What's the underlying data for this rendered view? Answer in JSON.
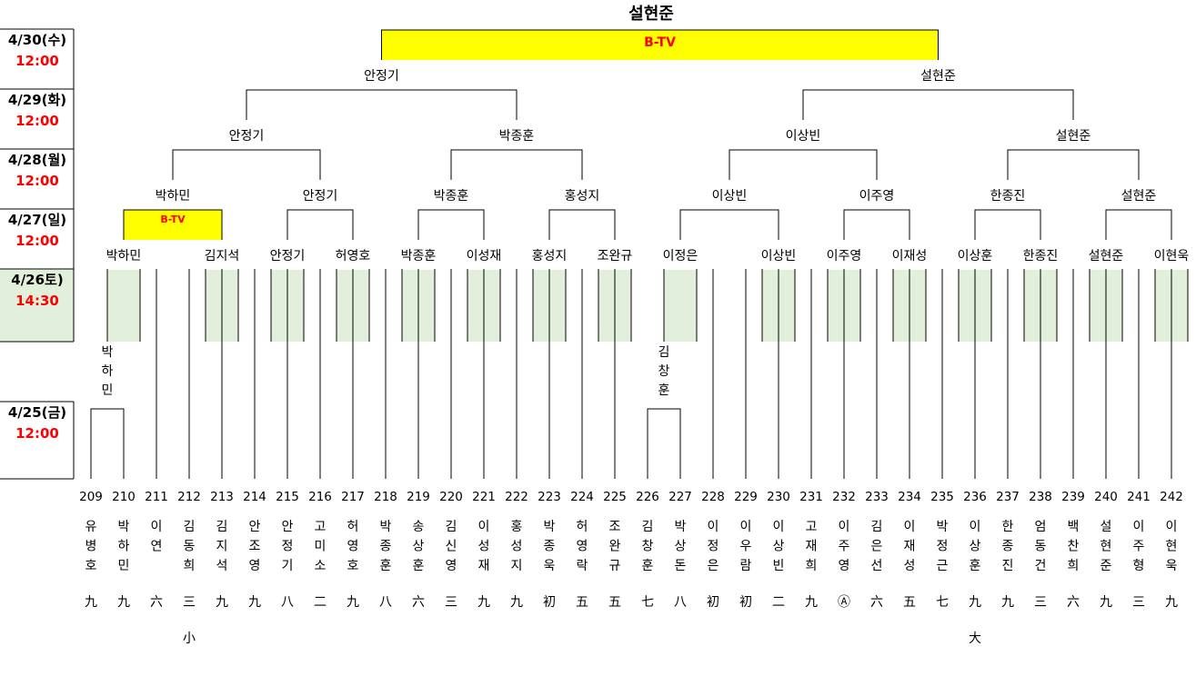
{
  "title": "설현준",
  "highlight_color": "#ffff00",
  "round1_fill": "#e2efda",
  "time_color": "#ff0000",
  "schedule": [
    {
      "date": "4/30(수)",
      "time": "12:00"
    },
    {
      "date": "4/29(화)",
      "time": "12:00"
    },
    {
      "date": "4/28(월)",
      "time": "12:00"
    },
    {
      "date": "4/27(일)",
      "time": "12:00"
    },
    {
      "date": "4/26토)",
      "time": "14:30"
    },
    {
      "date": "4/25(금)",
      "time": "12:00"
    }
  ],
  "broadcast_final": "B-TV",
  "broadcast_r16": "B-TV",
  "players": [
    {
      "seed": "209",
      "name": "유병호",
      "rank": "九"
    },
    {
      "seed": "210",
      "name": "박하민",
      "rank": "九"
    },
    {
      "seed": "211",
      "name": "이연",
      "rank": "六"
    },
    {
      "seed": "212",
      "name": "김동희",
      "rank": "三"
    },
    {
      "seed": "213",
      "name": "김지석",
      "rank": "九"
    },
    {
      "seed": "214",
      "name": "안조영",
      "rank": "九"
    },
    {
      "seed": "215",
      "name": "안정기",
      "rank": "八"
    },
    {
      "seed": "216",
      "name": "고미소",
      "rank": "二"
    },
    {
      "seed": "217",
      "name": "허영호",
      "rank": "九"
    },
    {
      "seed": "218",
      "name": "박종훈",
      "rank": "八"
    },
    {
      "seed": "219",
      "name": "송상훈",
      "rank": "六"
    },
    {
      "seed": "220",
      "name": "김신영",
      "rank": "三"
    },
    {
      "seed": "221",
      "name": "이성재",
      "rank": "九"
    },
    {
      "seed": "222",
      "name": "홍성지",
      "rank": "九"
    },
    {
      "seed": "223",
      "name": "박종욱",
      "rank": "初"
    },
    {
      "seed": "224",
      "name": "허영락",
      "rank": "五"
    },
    {
      "seed": "225",
      "name": "조완규",
      "rank": "五"
    },
    {
      "seed": "226",
      "name": "김창훈",
      "rank": "七"
    },
    {
      "seed": "227",
      "name": "박상돈",
      "rank": "八"
    },
    {
      "seed": "228",
      "name": "이정은",
      "rank": "初"
    },
    {
      "seed": "229",
      "name": "이우람",
      "rank": "初"
    },
    {
      "seed": "230",
      "name": "이상빈",
      "rank": "二"
    },
    {
      "seed": "231",
      "name": "고재희",
      "rank": "九"
    },
    {
      "seed": "232",
      "name": "이주영",
      "rank": "Ⓐ"
    },
    {
      "seed": "233",
      "name": "김은선",
      "rank": "六"
    },
    {
      "seed": "234",
      "name": "이재성",
      "rank": "五"
    },
    {
      "seed": "235",
      "name": "박정근",
      "rank": "七"
    },
    {
      "seed": "236",
      "name": "이상훈",
      "rank": "九"
    },
    {
      "seed": "237",
      "name": "한종진",
      "rank": "九"
    },
    {
      "seed": "238",
      "name": "엄동건",
      "rank": "三"
    },
    {
      "seed": "239",
      "name": "백찬희",
      "rank": "六"
    },
    {
      "seed": "240",
      "name": "설현준",
      "rank": "九"
    },
    {
      "seed": "241",
      "name": "이주형",
      "rank": "三"
    },
    {
      "seed": "242",
      "name": "이현욱",
      "rank": "九"
    }
  ],
  "notes": [
    {
      "player_index": 3,
      "text": "小"
    },
    {
      "player_index": 27,
      "text": "大"
    }
  ],
  "prelim_winners": [
    "박하민",
    "김창훈"
  ],
  "r32_winners": [
    "박하민",
    "김지석",
    "안정기",
    "허영호",
    "박종훈",
    "이성재",
    "홍성지",
    "조완규",
    "이정은",
    "이상빈",
    "이주영",
    "이재성",
    "이상훈",
    "한종진",
    "설현준",
    "이현욱"
  ],
  "r16_winners": [
    "박하민",
    "안정기",
    "박종훈",
    "홍성지",
    "이상빈",
    "이주영",
    "한종진",
    "설현준"
  ],
  "qf_winners": [
    "안정기",
    "박종훈",
    "이상빈",
    "설현준"
  ],
  "sf_winners": [
    "안정기",
    "설현준"
  ],
  "champion": "설현준"
}
